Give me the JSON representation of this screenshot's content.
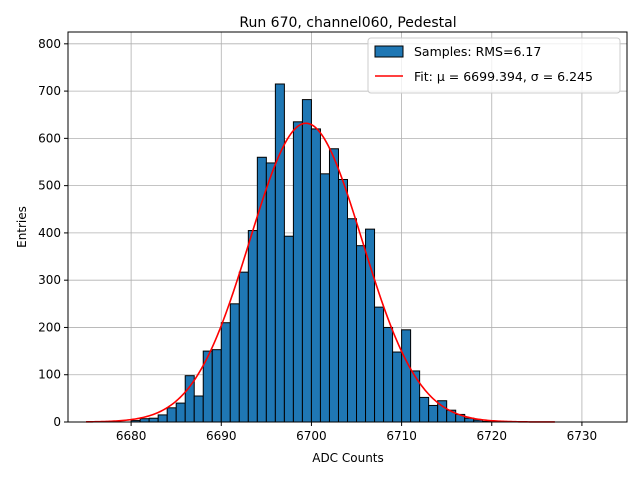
{
  "chart_data": {
    "type": "bar",
    "title": "Run 670, channel060, Pedestal",
    "xlabel": "ADC Counts",
    "ylabel": "Entries",
    "xlim": [
      6673,
      6735
    ],
    "ylim": [
      0,
      825
    ],
    "xticks": [
      6680,
      6690,
      6700,
      6710,
      6720,
      6730
    ],
    "yticks": [
      0,
      100,
      200,
      300,
      400,
      500,
      600,
      700,
      800
    ],
    "grid": true,
    "legend_position": "top-right",
    "bin_width": 1,
    "series": [
      {
        "name": "Samples: RMS=6.17",
        "type": "histogram",
        "color": "#1f77b4",
        "edgecolor": "#000000",
        "bins": [
          6680,
          6681,
          6682,
          6683,
          6684,
          6685,
          6686,
          6687,
          6688,
          6689,
          6690,
          6691,
          6692,
          6693,
          6694,
          6695,
          6696,
          6697,
          6698,
          6699,
          6700,
          6701,
          6702,
          6703,
          6704,
          6705,
          6706,
          6707,
          6708,
          6709,
          6710,
          6711,
          6712,
          6713,
          6714,
          6715,
          6716,
          6717,
          6718,
          6719
        ],
        "counts": [
          3,
          7,
          8,
          15,
          30,
          40,
          98,
          55,
          150,
          153,
          210,
          250,
          317,
          405,
          560,
          548,
          715,
          393,
          635,
          682,
          620,
          525,
          578,
          513,
          430,
          373,
          408,
          243,
          200,
          148,
          195,
          108,
          52,
          35,
          45,
          25,
          16,
          8,
          4,
          1
        ]
      },
      {
        "name": "Fit: μ = 6699.394, σ = 6.245",
        "type": "line",
        "color": "#ff0000",
        "x_range": [
          6675,
          6727
        ],
        "mu": 6699.394,
        "sigma": 6.245,
        "amplitude": 632
      }
    ]
  }
}
